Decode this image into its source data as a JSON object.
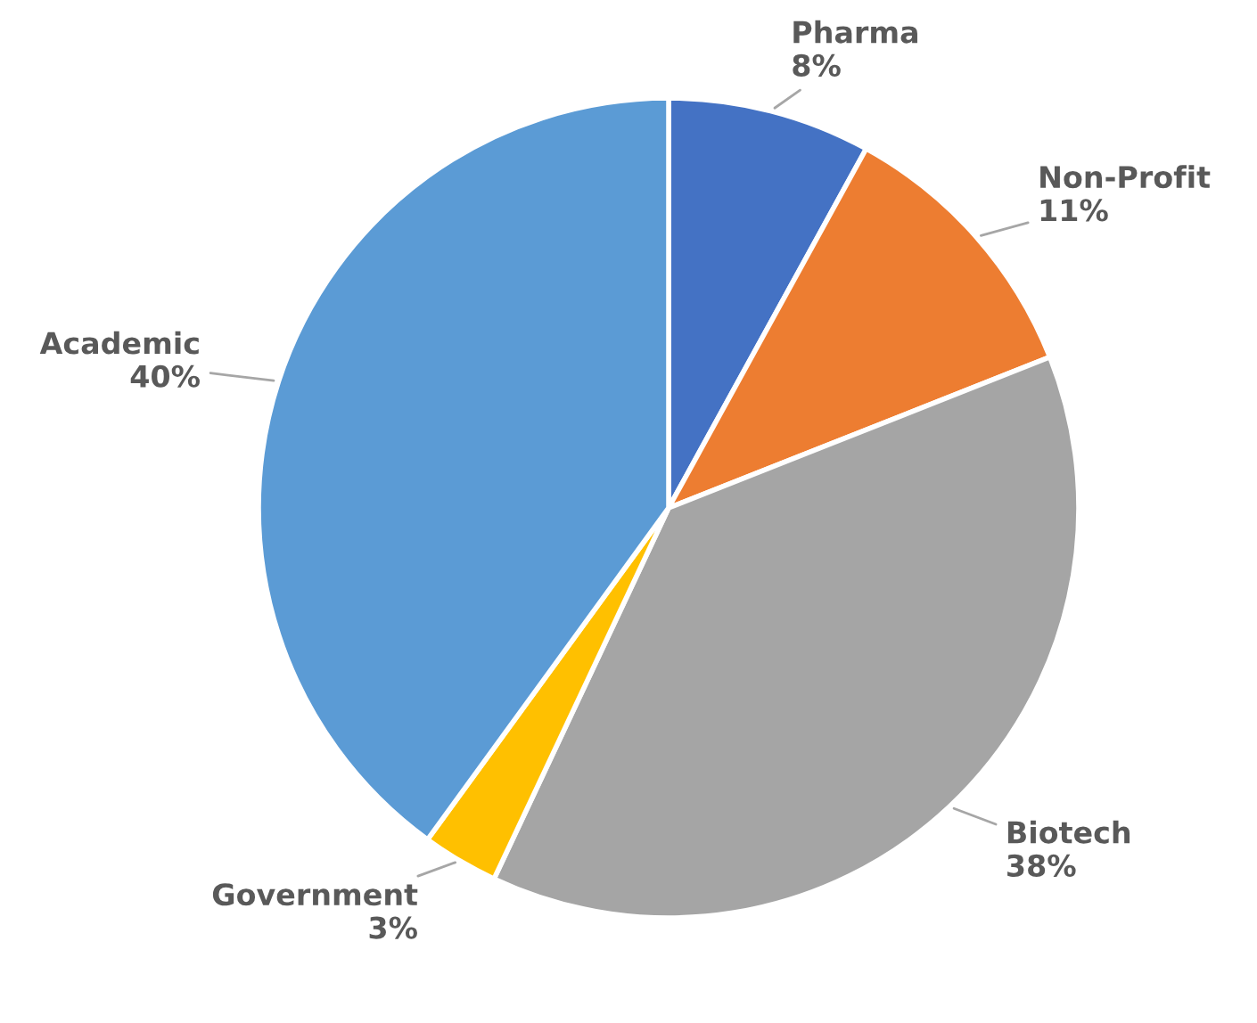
{
  "chart_data": {
    "type": "pie",
    "categories": [
      "Pharma",
      "Non-Profit",
      "Biotech",
      "Government",
      "Academic"
    ],
    "values": [
      8,
      11,
      38,
      3,
      40
    ],
    "value_labels": [
      "8%",
      "11%",
      "38%",
      "3%",
      "40%"
    ],
    "colors": [
      "#4472c4",
      "#ed7d31",
      "#a5a5a5",
      "#ffc000",
      "#5b9bd5"
    ],
    "legend": false
  }
}
